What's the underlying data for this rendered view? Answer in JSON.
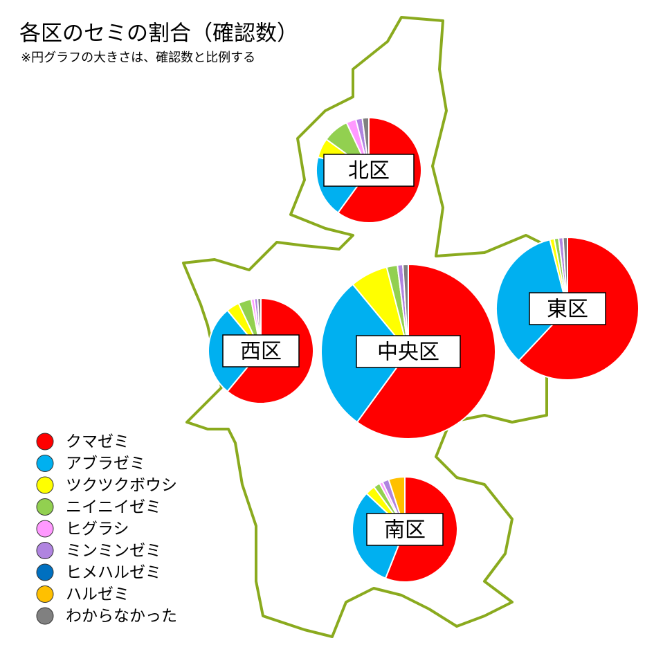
{
  "title": "各区のセミの割合（確認数）",
  "subtitle": "※円グラフの大きさは、確認数と比例する",
  "legend": [
    {
      "name": "クマゼミ",
      "color": "#ff0000"
    },
    {
      "name": "アブラゼミ",
      "color": "#00b0f0"
    },
    {
      "name": "ツクツクボウシ",
      "color": "#ffff00"
    },
    {
      "name": "ニイニイゼミ",
      "color": "#92d050"
    },
    {
      "name": "ヒグラシ",
      "color": "#ff99ff"
    },
    {
      "name": "ミンミンゼミ",
      "color": "#b084e0"
    },
    {
      "name": "ヒメハルゼミ",
      "color": "#0070c0"
    },
    {
      "name": "ハルゼミ",
      "color": "#ffc000"
    },
    {
      "name": "わからなかった",
      "color": "#808080"
    }
  ],
  "districts": [
    {
      "name": "北区",
      "values": [
        60,
        19,
        6,
        8,
        3,
        2,
        0,
        0,
        2
      ]
    },
    {
      "name": "東区",
      "values": [
        62,
        34,
        1,
        1,
        0,
        1,
        0,
        0,
        1
      ]
    },
    {
      "name": "中央区",
      "values": [
        60,
        29,
        7,
        2,
        0,
        1,
        0,
        0,
        1
      ]
    },
    {
      "name": "西区",
      "values": [
        61,
        28,
        4,
        4,
        1,
        1,
        0,
        0,
        1
      ]
    },
    {
      "name": "南区",
      "values": [
        56,
        31,
        3,
        2,
        1,
        2,
        0,
        5,
        0
      ]
    }
  ]
}
